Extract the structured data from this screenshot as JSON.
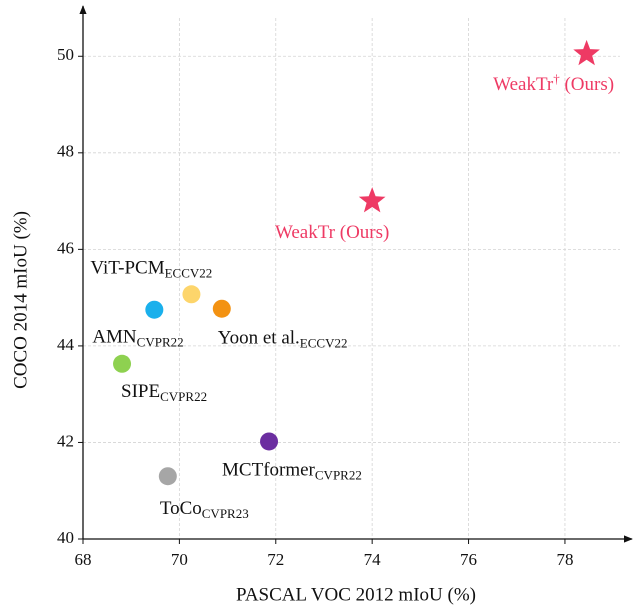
{
  "chart_data": {
    "type": "scatter",
    "x_label": "PASCAL VOC 2012 mIoU (%)",
    "y_label": "COCO 2014 mIoU (%)",
    "xlim": [
      68,
      79.35
    ],
    "xticks": [
      68,
      70,
      72,
      74,
      76,
      78
    ],
    "ylim": [
      40,
      51
    ],
    "yticks": [
      40,
      42,
      44,
      46,
      48,
      50
    ],
    "grid": true,
    "points": [
      {
        "name": "WeakTr",
        "superscript": "†",
        "suffix": " (Ours)",
        "x": 78.45,
        "y": 50.05,
        "color": "#ee3a64",
        "marker": "star"
      },
      {
        "name": "WeakTr (Ours)",
        "x": 74.0,
        "y": 47.0,
        "color": "#ee3a64",
        "marker": "star"
      },
      {
        "name": "ViT-PCM",
        "subscript": "ECCV22",
        "x": 70.25,
        "y": 45.07,
        "color": "#fdd56b",
        "marker": "circle"
      },
      {
        "name": "AMN",
        "subscript": "CVPR22",
        "x": 69.48,
        "y": 44.75,
        "color": "#1ab0ec",
        "marker": "circle"
      },
      {
        "name": "Yoon et al.",
        "subscript": "ECCV22",
        "x": 70.88,
        "y": 44.77,
        "color": "#f39212",
        "marker": "circle"
      },
      {
        "name": "SIPE",
        "subscript": "CVPR22",
        "x": 68.81,
        "y": 43.63,
        "color": "#8ed150",
        "marker": "circle"
      },
      {
        "name": "MCTformer",
        "subscript": "CVPR22",
        "x": 71.86,
        "y": 42.02,
        "color": "#6b2ea0",
        "marker": "circle"
      },
      {
        "name": "ToCo",
        "subscript": "CVPR23",
        "x": 69.76,
        "y": 41.3,
        "color": "#a6a6a6",
        "marker": "circle"
      }
    ]
  }
}
